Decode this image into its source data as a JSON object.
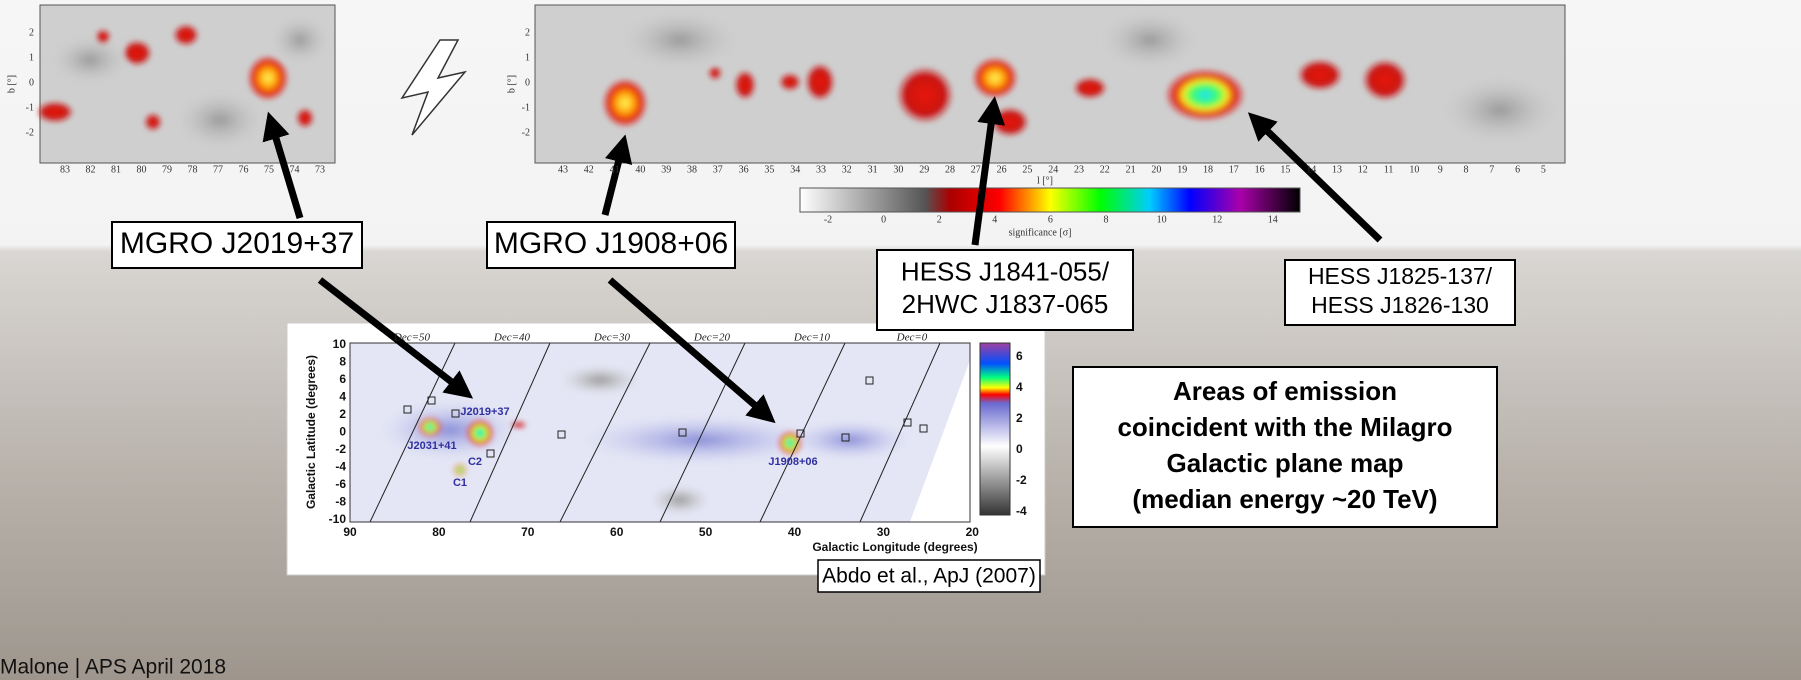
{
  "slide": {
    "left_map": {
      "b_label": "b [°]",
      "x_ticks": [
        83,
        82,
        81,
        80,
        79,
        78,
        77,
        76,
        75,
        74,
        73
      ],
      "y_ticks": [
        2,
        1,
        0,
        -1,
        -2
      ]
    },
    "right_map": {
      "b_label": "b [°]",
      "l_label": "l [°]",
      "x_ticks": [
        43,
        42,
        41,
        40,
        39,
        38,
        37,
        36,
        35,
        34,
        33,
        32,
        31,
        30,
        29,
        28,
        27,
        26,
        25,
        24,
        23,
        22,
        21,
        20,
        19,
        18,
        17,
        16,
        15,
        14,
        13,
        12,
        11,
        10,
        9,
        8,
        7,
        6,
        5
      ],
      "y_ticks": [
        2,
        1,
        0,
        -1,
        -2
      ],
      "colorbar_ticks": [
        -2,
        0,
        2,
        4,
        6,
        8,
        10,
        12,
        14
      ],
      "colorbar_label": "significance [σ]"
    },
    "callouts": [
      {
        "lines": [
          "MGRO J2019+37"
        ]
      },
      {
        "lines": [
          "MGRO J1908+06"
        ]
      },
      {
        "lines": [
          "HESS J1841-055/",
          "2HWC J1837-065"
        ]
      },
      {
        "lines": [
          "HESS J1825-137/",
          "HESS J1826-130"
        ]
      }
    ],
    "milagro_map": {
      "y_label": "Galactic Latitude (degrees)",
      "x_label": "Galactic Longitude (degrees)",
      "x_ticks": [
        90,
        80,
        70,
        60,
        50,
        40,
        30,
        20
      ],
      "y_ticks": [
        10,
        8,
        6,
        4,
        2,
        0,
        -2,
        -4,
        -6,
        -8,
        -10
      ],
      "dec_labels": [
        "Dec=50",
        "Dec=40",
        "Dec=30",
        "Dec=20",
        "Dec=10",
        "Dec=0"
      ],
      "source_labels": [
        "J2031+41",
        "J2019+37",
        "C2",
        "C1",
        "J1908+06"
      ],
      "colorbar_ticks": [
        6,
        4,
        2,
        0,
        -2,
        -4
      ]
    },
    "summary": {
      "lines": [
        "Areas of emission",
        "coincident with the Milagro",
        "Galactic plane map",
        "(median energy ~20 TeV)"
      ]
    },
    "footer": "Malone | APS April 2018",
    "citation": "Abdo et al., ApJ (2007)"
  }
}
